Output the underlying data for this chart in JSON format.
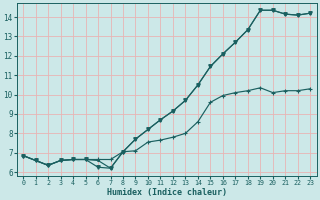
{
  "xlabel": "Humidex (Indice chaleur)",
  "bg_color": "#cce8e8",
  "grid_color": "#e8b4b4",
  "line_color": "#1a6060",
  "xlim": [
    -0.5,
    23.5
  ],
  "ylim": [
    5.8,
    14.7
  ],
  "yticks": [
    6,
    7,
    8,
    9,
    10,
    11,
    12,
    13,
    14
  ],
  "xticks": [
    0,
    1,
    2,
    3,
    4,
    5,
    6,
    7,
    8,
    9,
    10,
    11,
    12,
    13,
    14,
    15,
    16,
    17,
    18,
    19,
    20,
    21,
    22,
    23
  ],
  "line_upper_x": [
    0,
    1,
    2,
    3,
    4,
    5,
    6,
    7,
    8,
    9,
    10,
    11,
    12,
    13,
    14,
    15,
    16,
    17,
    18,
    19,
    20,
    21,
    22,
    23
  ],
  "line_upper_y": [
    6.85,
    6.6,
    6.35,
    6.6,
    6.65,
    6.65,
    6.6,
    6.2,
    7.05,
    7.7,
    8.2,
    8.7,
    9.15,
    9.7,
    10.5,
    11.45,
    12.1,
    12.7,
    13.35,
    14.35,
    14.35,
    14.15,
    14.1,
    14.2
  ],
  "line_lower_x": [
    0,
    1,
    2,
    3,
    4,
    5,
    6,
    7,
    8,
    9,
    10,
    11,
    12,
    13,
    14,
    15,
    16,
    17,
    18,
    19,
    20,
    21,
    22,
    23
  ],
  "line_lower_y": [
    6.85,
    6.6,
    6.35,
    6.6,
    6.65,
    6.65,
    6.65,
    6.65,
    7.05,
    7.1,
    7.55,
    7.65,
    7.8,
    8.0,
    8.6,
    9.6,
    9.95,
    10.1,
    10.2,
    10.35,
    10.1,
    10.2,
    10.2,
    10.3
  ],
  "line_mid_x": [
    0,
    1,
    2,
    3,
    4,
    5,
    6,
    7,
    8,
    9,
    10,
    11,
    12,
    13,
    14,
    15,
    16,
    17,
    18,
    19,
    20,
    21,
    22,
    23
  ],
  "line_mid_y": [
    6.85,
    6.6,
    6.35,
    6.6,
    6.65,
    6.65,
    6.25,
    6.2,
    7.05,
    7.7,
    8.2,
    8.7,
    9.15,
    9.7,
    10.5,
    11.45,
    12.1,
    12.7,
    13.35,
    14.35,
    14.35,
    14.15,
    14.1,
    14.2
  ]
}
